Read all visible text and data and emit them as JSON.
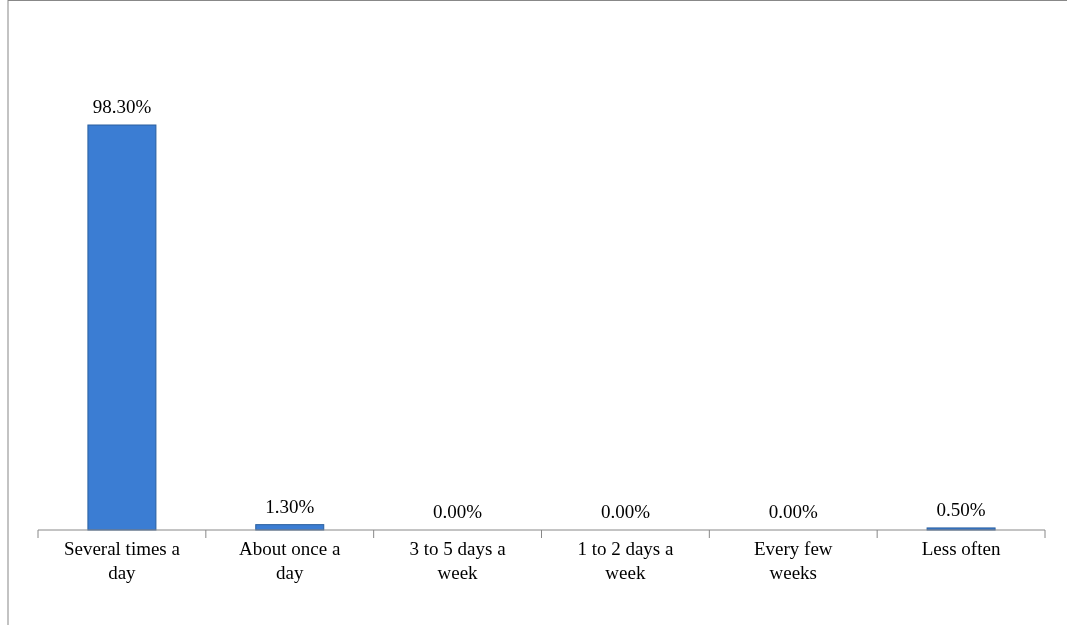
{
  "chart_data": {
    "type": "bar",
    "categories": [
      "Several times a day",
      "About once a day",
      "3 to 5 days a week",
      "1 to 2 days a week",
      "Every few weeks",
      "Less often"
    ],
    "values": [
      98.3,
      1.3,
      0,
      0,
      0,
      0.5
    ],
    "value_labels": [
      "98.30%",
      "1.30%",
      "0.00%",
      "0.00%",
      "0.00%",
      "0.50%"
    ],
    "color": "#3b7dd3"
  }
}
